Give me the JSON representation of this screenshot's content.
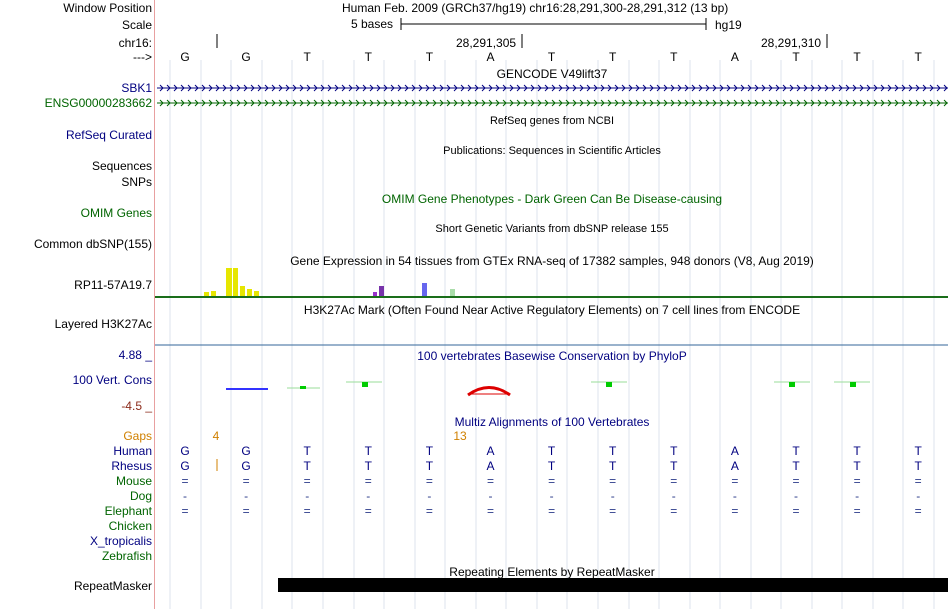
{
  "header": {
    "window_position_label": "Window Position",
    "window_position_value": "Human Feb. 2009 (GRCh37/hg19)   chr16:28,291,300-28,291,312 (13 bp)",
    "scale_label": "Scale",
    "scale_value": "5 bases",
    "scale_db": "hg19",
    "chrom_label": "chr16:",
    "pos1": "28,291,305",
    "pos2": "28,291,310",
    "arrow_label": "--->",
    "bases": [
      "G",
      "G",
      "T",
      "T",
      "T",
      "A",
      "T",
      "T",
      "T",
      "A",
      "T",
      "T",
      "T"
    ]
  },
  "tracks": {
    "gencode_title": "GENCODE V49lift37",
    "sbk1_label": "SBK1",
    "ensg_label": "ENSG00000283662",
    "refseq_label": "RefSeq Curated",
    "refseq_title": "RefSeq genes from NCBI",
    "sequences_label": "Sequences",
    "pubs_title": "Publications: Sequences in Scientific Articles",
    "snps_label": "SNPs",
    "omim_title": "OMIM Gene Phenotypes - Dark Green Can Be Disease-causing",
    "omim_label": "OMIM Genes",
    "dbsnp_title": "Short Genetic Variants from dbSNP release 155",
    "dbsnp_label": "Common dbSNP(155)",
    "gtex_title": "Gene Expression in 54 tissues from GTEx RNA-seq of 17382 samples, 948 donors (V8, Aug 2019)",
    "gtex_label": "RP11-57A19.7",
    "h3k27_title": "H3K27Ac Mark (Often Found Near Active Regulatory Elements) on 7 cell lines from ENCODE",
    "h3k27_label": "Layered H3K27Ac",
    "cons_max": "4.88 _",
    "cons_title": "100 vertebrates Basewise Conservation by PhyloP",
    "cons_label": "100 Vert. Cons",
    "cons_min": "-4.5 _",
    "multiz_title": "Multiz Alignments of 100 Vertebrates",
    "gaps_label": "Gaps",
    "gap1": "4",
    "gap2": "13",
    "repeat_title": "Repeating Elements by RepeatMasker",
    "repeat_label": "RepeatMasker"
  },
  "species": [
    {
      "name": "Human",
      "bases": [
        "G",
        "G",
        "T",
        "T",
        "T",
        "A",
        "T",
        "T",
        "T",
        "A",
        "T",
        "T",
        "T"
      ]
    },
    {
      "name": "Rhesus",
      "bases": [
        "G",
        "G",
        "T",
        "T",
        "T",
        "A",
        "T",
        "T",
        "T",
        "A",
        "T",
        "T",
        "T"
      ]
    },
    {
      "name": "Mouse",
      "bases": [
        "=",
        "=",
        "=",
        "=",
        "=",
        "=",
        "=",
        "=",
        "=",
        "=",
        "=",
        "=",
        "="
      ]
    },
    {
      "name": "Dog",
      "bases": [
        "-",
        "-",
        "-",
        "-",
        "-",
        "-",
        "-",
        "-",
        "-",
        "-",
        "-",
        "-",
        "-"
      ]
    },
    {
      "name": "Elephant",
      "bases": [
        "=",
        "=",
        "=",
        "=",
        "=",
        "=",
        "=",
        "=",
        "=",
        "=",
        "=",
        "=",
        "="
      ]
    },
    {
      "name": "Chicken",
      "bases": [
        "",
        "",
        "",
        "",
        "",
        "",
        "",
        "",
        "",
        "",
        "",
        "",
        ""
      ]
    },
    {
      "name": "X_tropicalis",
      "bases": [
        "",
        "",
        "",
        "",
        "",
        "",
        "",
        "",
        "",
        "",
        "",
        "",
        ""
      ]
    },
    {
      "name": "Zebrafish",
      "bases": [
        "",
        "",
        "",
        "",
        "",
        "",
        "",
        "",
        "",
        "",
        "",
        "",
        ""
      ]
    }
  ],
  "colors": {
    "navy": "#000080",
    "dark_green": "#006400",
    "gap_orange": "#d08000",
    "cons_dark_red": "#8b2a1a"
  }
}
